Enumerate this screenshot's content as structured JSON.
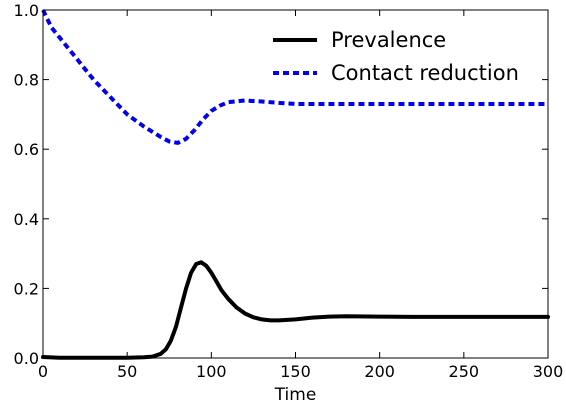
{
  "chart_data": {
    "type": "line",
    "title": "",
    "xlabel": "Time",
    "ylabel": "",
    "xlim": [
      0,
      300
    ],
    "ylim": [
      0.0,
      1.0
    ],
    "xticks": [
      0,
      50,
      100,
      150,
      200,
      250,
      300
    ],
    "yticks": [
      0.0,
      0.2,
      0.4,
      0.6,
      0.8,
      1.0
    ],
    "xtick_labels": [
      "0",
      "50",
      "100",
      "150",
      "200",
      "250",
      "300"
    ],
    "ytick_labels": [
      "0.0",
      "0.2",
      "0.4",
      "0.6",
      "0.8",
      "1.0"
    ],
    "grid": false,
    "legend_position": "top-right",
    "series": [
      {
        "name": "Prevalence",
        "color": "#000000",
        "style": "solid",
        "x": [
          0,
          10,
          20,
          30,
          40,
          50,
          60,
          65,
          70,
          73,
          76,
          79,
          82,
          85,
          88,
          91,
          94,
          97,
          100,
          103,
          106,
          110,
          115,
          120,
          125,
          130,
          135,
          140,
          150,
          160,
          170,
          180,
          200,
          220,
          250,
          300
        ],
        "y": [
          0.003,
          0.001,
          0.001,
          0.001,
          0.001,
          0.001,
          0.002,
          0.004,
          0.012,
          0.025,
          0.05,
          0.09,
          0.145,
          0.2,
          0.245,
          0.27,
          0.275,
          0.265,
          0.245,
          0.22,
          0.195,
          0.17,
          0.145,
          0.128,
          0.117,
          0.111,
          0.108,
          0.108,
          0.111,
          0.116,
          0.119,
          0.12,
          0.119,
          0.118,
          0.118,
          0.118
        ]
      },
      {
        "name": "Contact reduction",
        "color": "#0000ee",
        "style": "dashed",
        "x": [
          0,
          5,
          10,
          20,
          30,
          40,
          50,
          60,
          70,
          75,
          80,
          85,
          90,
          95,
          100,
          105,
          110,
          120,
          130,
          140,
          150,
          170,
          200,
          250,
          300
        ],
        "y": [
          1.0,
          0.95,
          0.92,
          0.86,
          0.8,
          0.75,
          0.7,
          0.665,
          0.635,
          0.622,
          0.618,
          0.63,
          0.655,
          0.685,
          0.71,
          0.725,
          0.735,
          0.74,
          0.737,
          0.733,
          0.73,
          0.73,
          0.73,
          0.73,
          0.73
        ]
      }
    ]
  }
}
